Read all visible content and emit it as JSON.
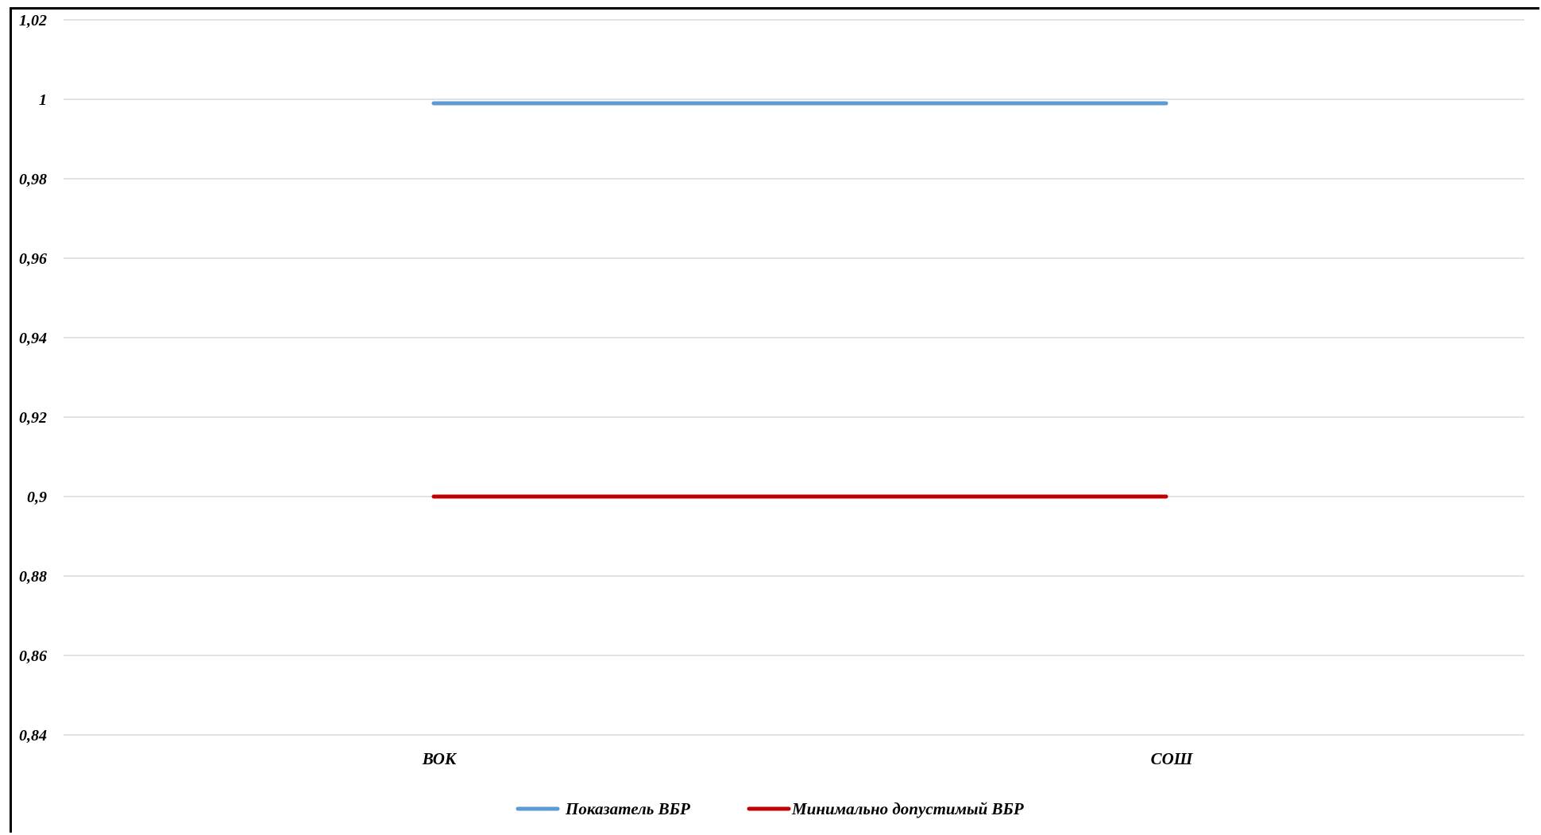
{
  "chart_data": {
    "type": "line",
    "categories": [
      "ВОК",
      "СОШ"
    ],
    "series": [
      {
        "name": "Показатель ВБР",
        "values": [
          0.999,
          0.999
        ],
        "color": "#5b9bd5"
      },
      {
        "name": "Минимально допустимый ВБР",
        "values": [
          0.9,
          0.9
        ],
        "color": "#c00000"
      }
    ],
    "y_ticks": [
      "0,84",
      "0,86",
      "0,88",
      "0,9",
      "0,92",
      "0,94",
      "0,96",
      "0,98",
      "1",
      "1,02"
    ],
    "ylim": [
      0.84,
      1.02
    ],
    "grid": true,
    "gridline_color": "#d9d9d9",
    "legend_position": "bottom"
  }
}
